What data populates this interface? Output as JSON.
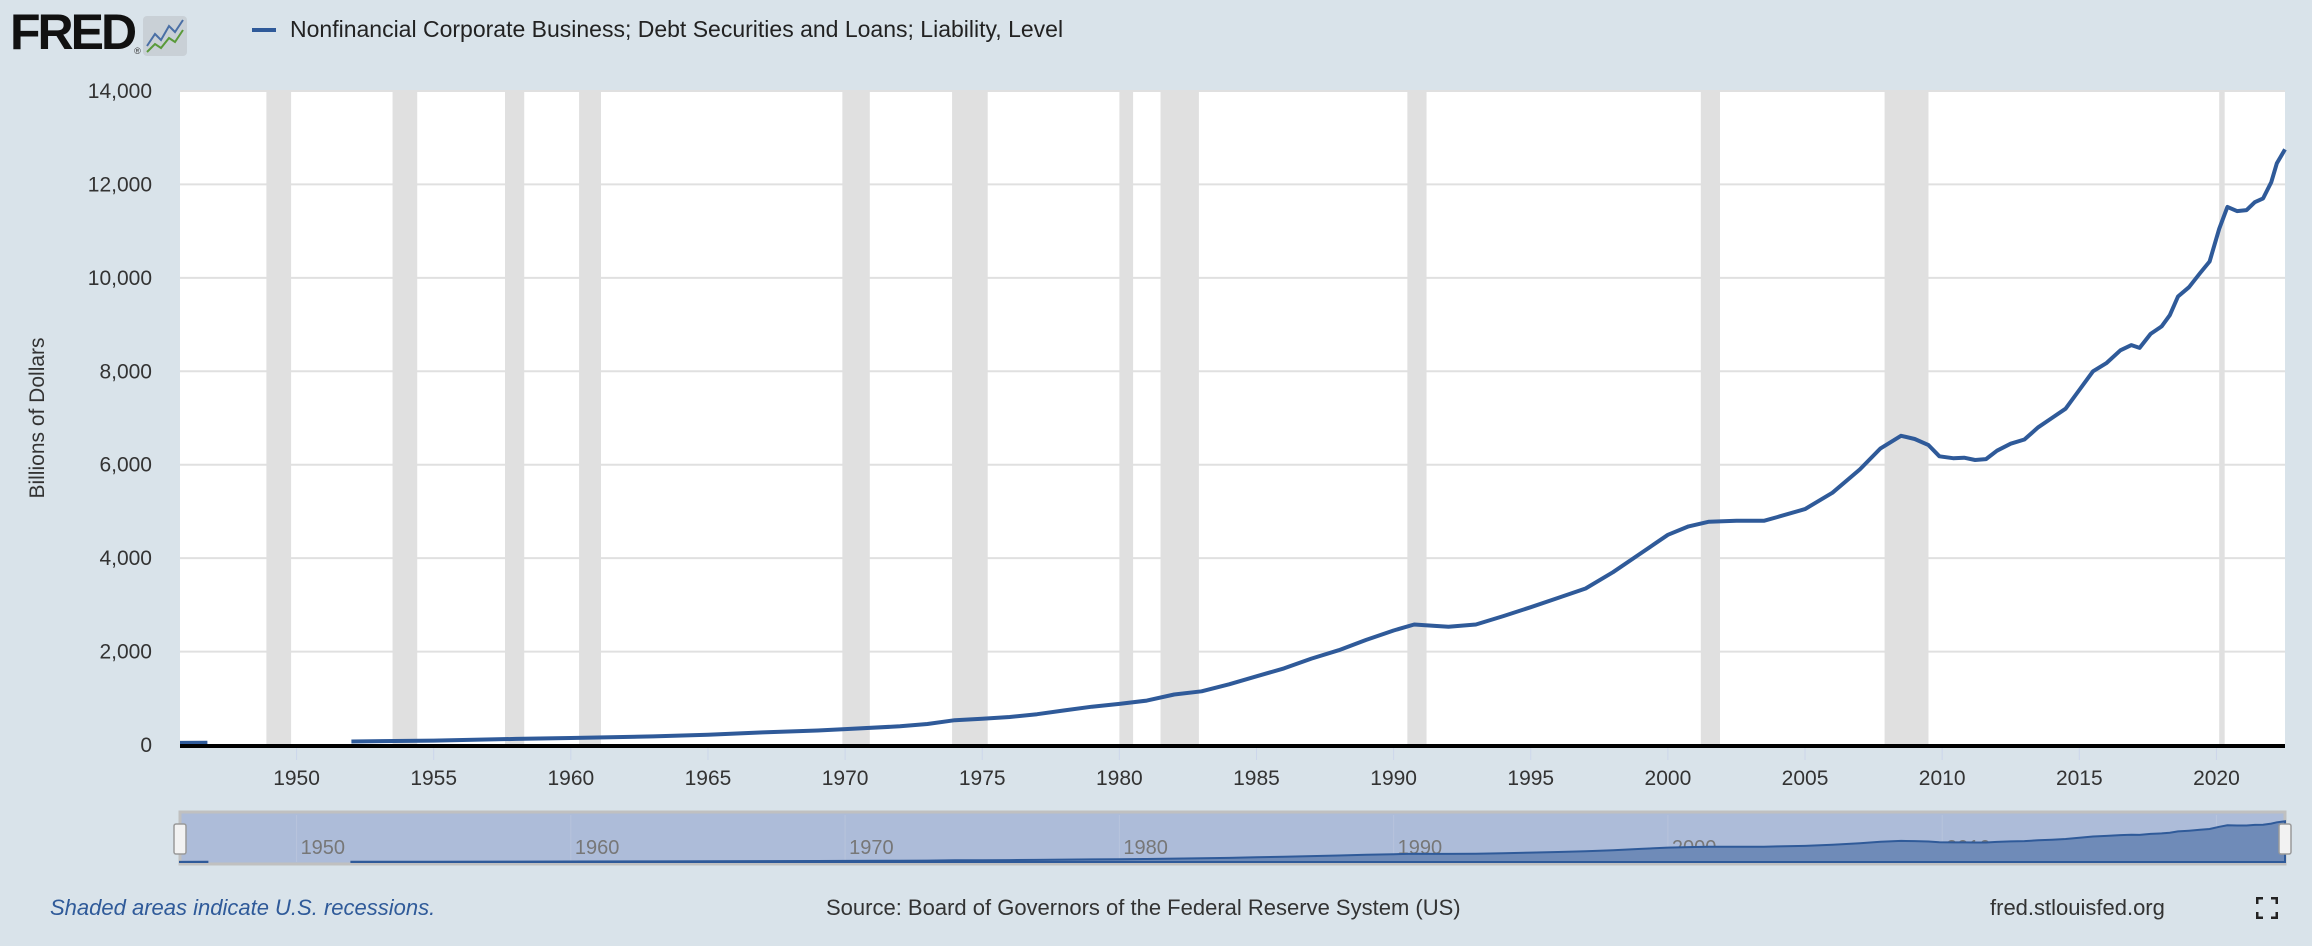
{
  "logo": {
    "text": "FRED",
    "registered": "®"
  },
  "legend": {
    "series_color": "#2f5a99"
  },
  "footer": {
    "note": "Shaded areas indicate U.S. recessions.",
    "source": "Source: Board of Governors of the Federal Reserve System (US)",
    "site": "fred.stlouisfed.org"
  },
  "chart_data": {
    "type": "line",
    "title": "Nonfinancial Corporate Business; Debt Securities and Loans; Liability, Level",
    "xlabel": "",
    "ylabel": "Billions of Dollars",
    "xlim": [
      1945.75,
      2022.5
    ],
    "ylim": [
      0,
      14000
    ],
    "grid": true,
    "yticks": [
      "0",
      "2,000",
      "4,000",
      "6,000",
      "8,000",
      "10,000",
      "12,000",
      "14,000"
    ],
    "ytick_values": [
      0,
      2000,
      4000,
      6000,
      8000,
      10000,
      12000,
      14000
    ],
    "xticks": [
      "1950",
      "1955",
      "1960",
      "1965",
      "1970",
      "1975",
      "1980",
      "1985",
      "1990",
      "1995",
      "2000",
      "2005",
      "2010",
      "2015",
      "2020"
    ],
    "navigator_ticks": [
      "1950",
      "1960",
      "1970",
      "1980",
      "1990",
      "2000",
      "2010",
      "2020"
    ],
    "recessions": [
      [
        1948.9,
        1949.8
      ],
      [
        1953.5,
        1954.4
      ],
      [
        1957.6,
        1958.3
      ],
      [
        1960.3,
        1961.1
      ],
      [
        1969.9,
        1970.9
      ],
      [
        1973.9,
        1975.2
      ],
      [
        1980.0,
        1980.5
      ],
      [
        1981.5,
        1982.9
      ],
      [
        1990.5,
        1991.2
      ],
      [
        2001.2,
        2001.9
      ],
      [
        2007.9,
        2009.5
      ],
      [
        2020.1,
        2020.3
      ]
    ],
    "series": [
      {
        "name": "Nonfinancial Corporate Business; Debt Securities and Loans; Liability, Level",
        "segments": [
          [
            [
              1945.75,
              45
            ],
            [
              1946.75,
              50
            ]
          ],
          [
            [
              1952,
              75
            ],
            [
              1955,
              95
            ],
            [
              1958,
              130
            ],
            [
              1960,
              150
            ],
            [
              1963,
              185
            ],
            [
              1965,
              220
            ],
            [
              1967,
              270
            ],
            [
              1969,
              310
            ],
            [
              1970,
              340
            ],
            [
              1972,
              400
            ],
            [
              1973,
              450
            ],
            [
              1974,
              530
            ],
            [
              1975,
              560
            ],
            [
              1976,
              600
            ],
            [
              1977,
              660
            ],
            [
              1978,
              740
            ],
            [
              1979,
              820
            ],
            [
              1980,
              880
            ],
            [
              1981,
              950
            ],
            [
              1982,
              1080
            ],
            [
              1983,
              1150
            ],
            [
              1984,
              1300
            ],
            [
              1985,
              1470
            ],
            [
              1986,
              1640
            ],
            [
              1987,
              1850
            ],
            [
              1988,
              2030
            ],
            [
              1989,
              2250
            ],
            [
              1990,
              2450
            ],
            [
              1990.75,
              2580
            ],
            [
              1991.5,
              2550
            ],
            [
              1992,
              2530
            ],
            [
              1993,
              2580
            ],
            [
              1994,
              2760
            ],
            [
              1995,
              2950
            ],
            [
              1996,
              3150
            ],
            [
              1997,
              3350
            ],
            [
              1998,
              3700
            ],
            [
              1999,
              4100
            ],
            [
              2000,
              4500
            ],
            [
              2000.75,
              4680
            ],
            [
              2001.5,
              4780
            ],
            [
              2002.5,
              4800
            ],
            [
              2003.5,
              4800
            ],
            [
              2004,
              4880
            ],
            [
              2005,
              5050
            ],
            [
              2006,
              5400
            ],
            [
              2007,
              5900
            ],
            [
              2007.75,
              6350
            ],
            [
              2008.5,
              6620
            ],
            [
              2009,
              6550
            ],
            [
              2009.5,
              6420
            ],
            [
              2009.9,
              6180
            ],
            [
              2010.4,
              6140
            ],
            [
              2010.8,
              6150
            ],
            [
              2011.2,
              6100
            ],
            [
              2011.6,
              6120
            ],
            [
              2012,
              6300
            ],
            [
              2012.5,
              6450
            ],
            [
              2013,
              6540
            ],
            [
              2013.5,
              6800
            ],
            [
              2014,
              7000
            ],
            [
              2014.5,
              7200
            ],
            [
              2015,
              7600
            ],
            [
              2015.5,
              8000
            ],
            [
              2016,
              8180
            ],
            [
              2016.5,
              8450
            ],
            [
              2016.9,
              8560
            ],
            [
              2017.2,
              8500
            ],
            [
              2017.6,
              8800
            ],
            [
              2018,
              8960
            ],
            [
              2018.3,
              9200
            ],
            [
              2018.6,
              9600
            ],
            [
              2019,
              9800
            ],
            [
              2019.4,
              10100
            ],
            [
              2019.75,
              10350
            ],
            [
              2020.1,
              11050
            ],
            [
              2020.4,
              11520
            ],
            [
              2020.75,
              11430
            ],
            [
              2021.1,
              11450
            ],
            [
              2021.4,
              11620
            ],
            [
              2021.7,
              11700
            ],
            [
              2022,
              12050
            ],
            [
              2022.2,
              12450
            ],
            [
              2022.5,
              12750
            ]
          ]
        ]
      }
    ]
  }
}
